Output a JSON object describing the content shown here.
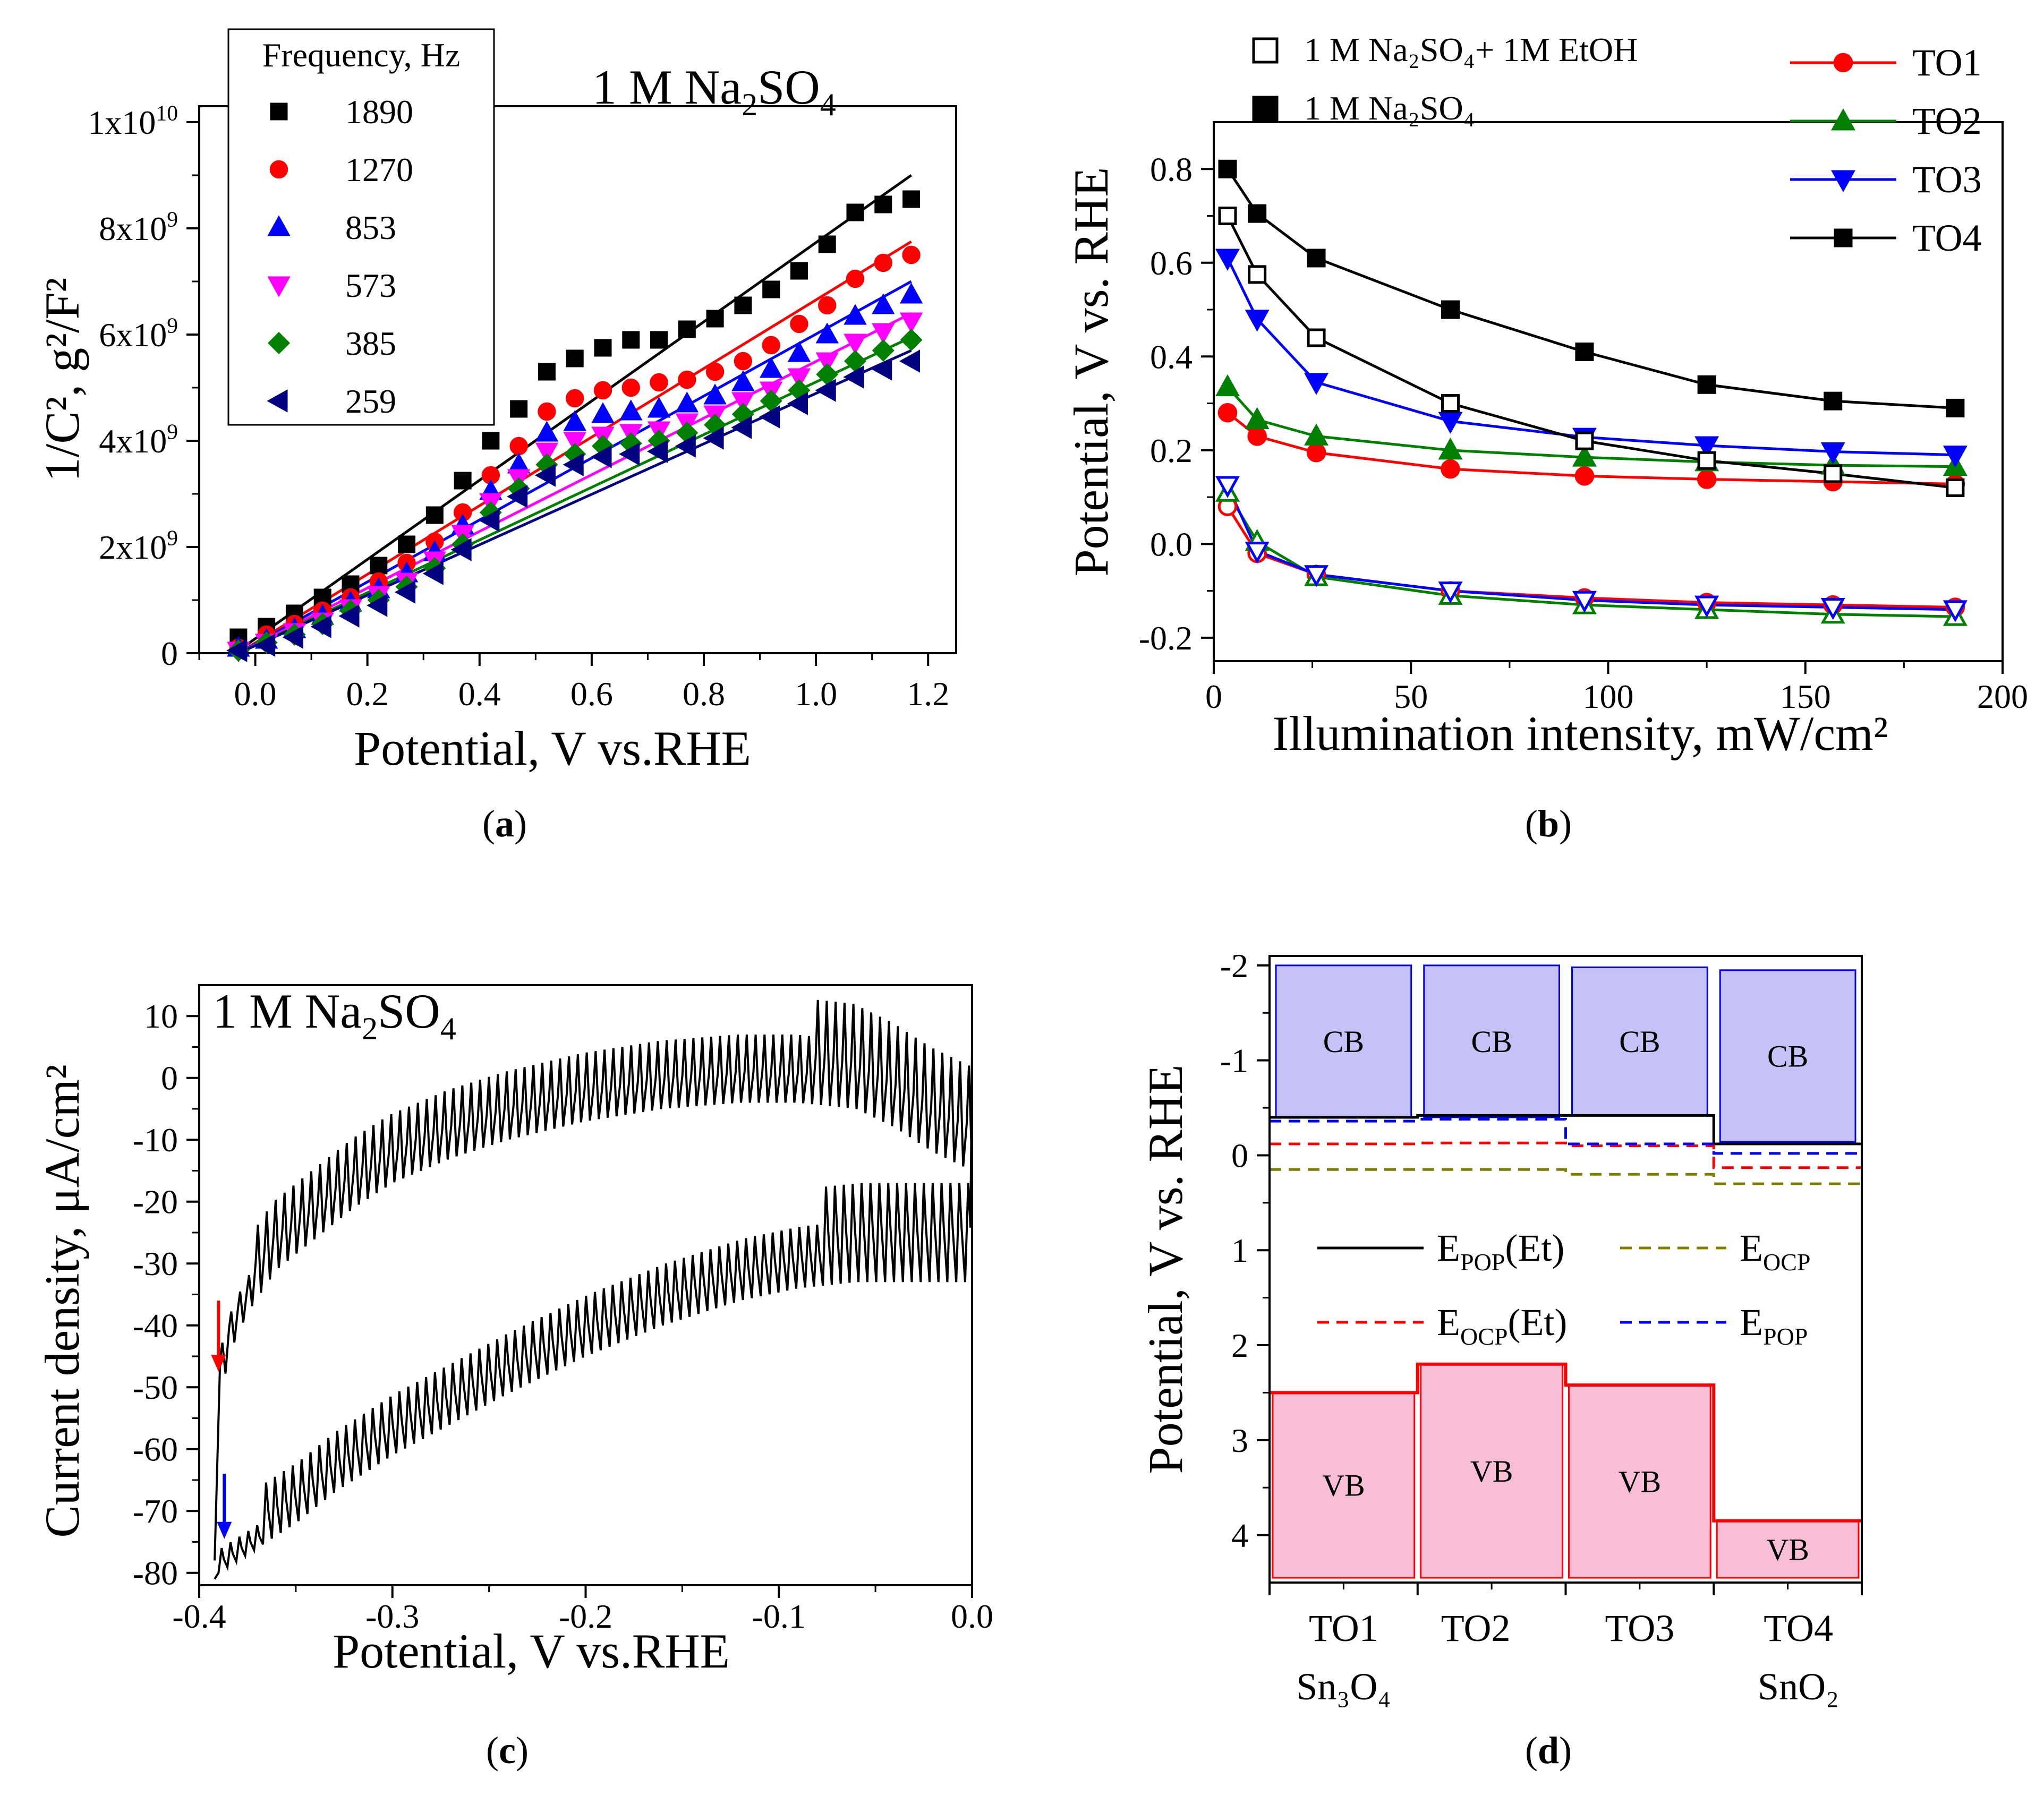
{
  "chart_data": [
    {
      "id": "a",
      "panel_label": "a",
      "type": "scatter",
      "annotation": "1 M Na",
      "annotation_sub": [
        "2",
        "4"
      ],
      "annotation_mid": "SO",
      "xlabel": "Potential, V vs.RHE",
      "ylabel": "1/C², g²/F²",
      "xlim": [
        -0.1,
        1.25
      ],
      "ylim": [
        0,
        10000000000.0
      ],
      "xticks": [
        0.0,
        0.2,
        0.4,
        0.6,
        0.8,
        1.0,
        1.2
      ],
      "xtick_labels": [
        "0.0",
        "0.2",
        "0.4",
        "0.6",
        "0.8",
        "1.0",
        "1.2"
      ],
      "yticks": [
        0,
        2000000000.0,
        4000000000.0,
        6000000000.0,
        8000000000.0,
        10000000000.0
      ],
      "ytick_labels": [
        "0",
        "2x10⁹",
        "4x10⁹",
        "6x10⁹",
        "8x10⁹",
        "1x10¹⁰"
      ],
      "legend_title": "Frequency, Hz",
      "legend_position": "top-left",
      "x": [
        -0.03,
        0.02,
        0.07,
        0.12,
        0.17,
        0.22,
        0.27,
        0.32,
        0.37,
        0.42,
        0.47,
        0.52,
        0.57,
        0.62,
        0.67,
        0.72,
        0.77,
        0.82,
        0.87,
        0.92,
        0.97,
        1.02,
        1.07,
        1.12,
        1.17
      ],
      "series": [
        {
          "name": "1890",
          "color": "#000000",
          "marker": "square",
          "values": [
            300000000.0,
            500000000.0,
            750000000.0,
            1050000000.0,
            1300000000.0,
            1650000000.0,
            2050000000.0,
            2600000000.0,
            3250000000.0,
            4000000000.0,
            4600000000.0,
            5300000000.0,
            5550000000.0,
            5750000000.0,
            5900000000.0,
            5900000000.0,
            6100000000.0,
            6300000000.0,
            6550000000.0,
            6850000000.0,
            7200000000.0,
            7700000000.0,
            8300000000.0,
            8450000000.0,
            8550000000.0
          ],
          "fit": [
            [
              -0.03,
              50000000.0
            ],
            [
              1.17,
              9000000000.0
            ]
          ]
        },
        {
          "name": "1270",
          "color": "#ff0000",
          "marker": "circle",
          "values": [
            100000000.0,
            350000000.0,
            550000000.0,
            800000000.0,
            1050000000.0,
            1350000000.0,
            1700000000.0,
            2100000000.0,
            2650000000.0,
            3350000000.0,
            3900000000.0,
            4550000000.0,
            4800000000.0,
            4950000000.0,
            5000000000.0,
            5100000000.0,
            5150000000.0,
            5300000000.0,
            5500000000.0,
            5800000000.0,
            6200000000.0,
            6550000000.0,
            7050000000.0,
            7350000000.0,
            7500000000.0
          ],
          "fit": [
            [
              -0.03,
              0.0
            ],
            [
              1.17,
              7750000000.0
            ]
          ]
        },
        {
          "name": "853",
          "color": "#0000ff",
          "marker": "triangle-up",
          "values": [
            100000000.0,
            250000000.0,
            450000000.0,
            700000000.0,
            950000000.0,
            1200000000.0,
            1500000000.0,
            1900000000.0,
            2400000000.0,
            3050000000.0,
            3550000000.0,
            4150000000.0,
            4350000000.0,
            4500000000.0,
            4550000000.0,
            4600000000.0,
            4700000000.0,
            4850000000.0,
            5100000000.0,
            5350000000.0,
            5650000000.0,
            6000000000.0,
            6350000000.0,
            6550000000.0,
            6750000000.0
          ],
          "fit": [
            [
              -0.03,
              0.0
            ],
            [
              1.17,
              7000000000.0
            ]
          ]
        },
        {
          "name": "573",
          "color": "#ff00ff",
          "marker": "triangle-down",
          "values": [
            50000000.0,
            200000000.0,
            400000000.0,
            600000000.0,
            850000000.0,
            1100000000.0,
            1350000000.0,
            1750000000.0,
            2250000000.0,
            2850000000.0,
            3300000000.0,
            3800000000.0,
            4000000000.0,
            4100000000.0,
            4150000000.0,
            4200000000.0,
            4350000000.0,
            4500000000.0,
            4750000000.0,
            4950000000.0,
            5200000000.0,
            5500000000.0,
            5850000000.0,
            6050000000.0,
            6250000000.0
          ],
          "fit": [
            [
              -0.03,
              0.0
            ],
            [
              1.17,
              6400000000.0
            ]
          ]
        },
        {
          "name": "385",
          "color": "#008000",
          "marker": "diamond",
          "values": [
            50000000.0,
            200000000.0,
            350000000.0,
            550000000.0,
            800000000.0,
            1000000000.0,
            1250000000.0,
            1600000000.0,
            2050000000.0,
            2650000000.0,
            3100000000.0,
            3550000000.0,
            3750000000.0,
            3900000000.0,
            3950000000.0,
            4000000000.0,
            4150000000.0,
            4300000000.0,
            4500000000.0,
            4750000000.0,
            4950000000.0,
            5250000000.0,
            5500000000.0,
            5700000000.0,
            5900000000.0
          ],
          "fit": [
            [
              -0.03,
              0.0
            ],
            [
              1.17,
              5950000000.0
            ]
          ]
        },
        {
          "name": "259",
          "color": "#000080",
          "marker": "triangle-left",
          "values": [
            50000000.0,
            150000000.0,
            300000000.0,
            500000000.0,
            700000000.0,
            900000000.0,
            1150000000.0,
            1500000000.0,
            1950000000.0,
            2500000000.0,
            2950000000.0,
            3350000000.0,
            3550000000.0,
            3700000000.0,
            3750000000.0,
            3800000000.0,
            3900000000.0,
            4050000000.0,
            4250000000.0,
            4450000000.0,
            4700000000.0,
            4950000000.0,
            5200000000.0,
            5350000000.0,
            5500000000.0
          ],
          "fit": [
            [
              -0.03,
              0.0
            ],
            [
              1.17,
              5700000000.0
            ]
          ]
        }
      ]
    },
    {
      "id": "b",
      "panel_label": "b",
      "type": "line",
      "xlabel": "Illumination intensity, mW/cm²",
      "ylabel": "Potential, V vs. RHE",
      "xlim": [
        0,
        200
      ],
      "ylim": [
        -0.25,
        0.9
      ],
      "xticks": [
        0,
        50,
        100,
        150,
        200
      ],
      "xtick_labels": [
        "0",
        "50",
        "100",
        "150",
        "200"
      ],
      "yticks": [
        -0.2,
        0.0,
        0.2,
        0.4,
        0.6,
        0.8
      ],
      "ytick_labels": [
        "-0.2",
        "0.0",
        "0.2",
        "0.4",
        "0.6",
        "0.8"
      ],
      "legend_conditions": [
        {
          "label": "1 M Na₂SO₄+ 1M EtOH",
          "marker": "open-square"
        },
        {
          "label": "1 M Na₂SO₄",
          "marker": "filled-square"
        }
      ],
      "legend_position": "top-right",
      "x": [
        3.5,
        11,
        26,
        60,
        94,
        125,
        157,
        188
      ],
      "series": [
        {
          "name": "TO1",
          "color": "#ff0000",
          "marker": "circle",
          "filled": [
            0.28,
            0.23,
            0.195,
            0.16,
            0.145,
            0.138,
            0.133,
            0.128
          ],
          "open": [
            0.08,
            -0.02,
            -0.065,
            -0.1,
            -0.115,
            -0.125,
            -0.13,
            -0.135
          ]
        },
        {
          "name": "TO2",
          "color": "#008000",
          "marker": "triangle-up",
          "filled": [
            0.335,
            0.265,
            0.23,
            0.2,
            0.185,
            0.175,
            0.168,
            0.165
          ],
          "open": [
            0.11,
            0.005,
            -0.07,
            -0.11,
            -0.13,
            -0.14,
            -0.15,
            -0.155
          ]
        },
        {
          "name": "TO3",
          "color": "#0000ff",
          "marker": "triangle-down",
          "filled": [
            0.61,
            0.48,
            0.345,
            0.262,
            0.228,
            0.21,
            0.197,
            0.19
          ],
          "open": [
            0.125,
            -0.015,
            -0.065,
            -0.1,
            -0.12,
            -0.13,
            -0.135,
            -0.14
          ]
        },
        {
          "name": "TO4",
          "color": "#000000",
          "marker": "square",
          "filled": [
            0.8,
            0.705,
            0.61,
            0.5,
            0.41,
            0.34,
            0.305,
            0.29
          ],
          "open": [
            0.7,
            0.575,
            0.44,
            0.3,
            0.22,
            0.178,
            0.15,
            0.12
          ]
        }
      ]
    },
    {
      "id": "c",
      "panel_label": "c",
      "type": "line",
      "annotation_parts": [
        "1 M Na",
        "2",
        "SO",
        "4"
      ],
      "xlabel": "Potential, V vs.RHE",
      "ylabel": "Current density, μA/cm²",
      "xlim": [
        -0.4,
        0.0
      ],
      "ylim": [
        -82,
        15
      ],
      "xticks": [
        -0.4,
        -0.3,
        -0.2,
        -0.1,
        0.0
      ],
      "xtick_labels": [
        "-0.4",
        "-0.3",
        "-0.2",
        "-0.1",
        "0.0"
      ],
      "yticks": [
        -80,
        -70,
        -60,
        -50,
        -40,
        -30,
        -20,
        -10,
        0,
        10
      ],
      "ytick_labels": [
        "-80",
        "-70",
        "-60",
        "-50",
        "-40",
        "-30",
        "-20",
        "-10",
        "0",
        "10"
      ],
      "upper_envelope_x": [
        -0.39,
        -0.385,
        -0.375,
        -0.36,
        -0.34,
        -0.32,
        -0.3,
        -0.27,
        -0.24,
        -0.2,
        -0.16,
        -0.12,
        -0.09,
        -0.06,
        -0.04,
        -0.02,
        0.0
      ],
      "upper_envelope_y": [
        -55,
        -45,
        -38,
        -31,
        -26,
        -21,
        -17,
        -13,
        -10,
        -7,
        -5,
        -4,
        -4,
        -5,
        -8,
        -12,
        -15
      ],
      "lower_envelope_x": [
        -0.39,
        -0.385,
        -0.37,
        -0.35,
        -0.33,
        -0.3,
        -0.27,
        -0.24,
        -0.2,
        -0.16,
        -0.12,
        -0.09,
        -0.06,
        -0.04,
        -0.02,
        0.0
      ],
      "lower_envelope_y": [
        -80,
        -79,
        -76,
        -72,
        -67,
        -61,
        -56,
        -51,
        -45,
        -40,
        -36,
        -34,
        -33,
        -33,
        -33,
        -33
      ],
      "spike_amplitude": 10,
      "arrows": [
        {
          "color": "#ff0000",
          "x": -0.39,
          "y_from": -36,
          "y_to": -47
        },
        {
          "color": "#0000ff",
          "x": -0.387,
          "y_from": -64,
          "y_to": -74
        }
      ]
    },
    {
      "id": "d",
      "panel_label": "d",
      "type": "bar",
      "ylabel": "Potential, V vs. RHE",
      "ylim_inverted": [
        -2.1,
        4.5
      ],
      "yticks": [
        -2,
        -1,
        0,
        1,
        2,
        3,
        4
      ],
      "ytick_labels": [
        "-2",
        "-1",
        "0",
        "1",
        "2",
        "3",
        "4"
      ],
      "categories": [
        "TO1",
        "TO2",
        "TO3",
        "TO4"
      ],
      "sublabels": [
        "Sn₃O₄",
        "",
        "",
        "SnO₂"
      ],
      "cb_label": "CB",
      "vb_label": "VB",
      "cb_color": "#c6c1f6",
      "vb_color": "#f8bed6",
      "cb_top": [
        -2.0,
        -2.0,
        -1.98,
        -1.95
      ],
      "cb_bottom": [
        -0.4,
        -0.4,
        -0.42,
        -0.14
      ],
      "vb_top": [
        2.5,
        2.2,
        2.42,
        3.85
      ],
      "vb_bottom": [
        4.45,
        4.45,
        4.45,
        4.45
      ],
      "lines": [
        {
          "name": "E_POP(Et)",
          "label_main": "E",
          "label_sub": "POP",
          "label_tail": "(Et)",
          "color": "#000000",
          "dash": false,
          "values": [
            -0.4,
            -0.42,
            -0.42,
            -0.12
          ]
        },
        {
          "name": "E_OCP",
          "label_main": "E",
          "label_sub": "OCP",
          "label_tail": "",
          "color": "#808000",
          "dash": true,
          "values": [
            0.15,
            0.15,
            0.2,
            0.3
          ]
        },
        {
          "name": "E_OCP(Et)",
          "label_main": "E",
          "label_sub": "OCP",
          "label_tail": "(Et)",
          "color": "#ff0000",
          "dash": true,
          "values": [
            -0.12,
            -0.13,
            -0.1,
            0.13
          ]
        },
        {
          "name": "E_POP",
          "label_main": "E",
          "label_sub": "POP",
          "label_tail": "",
          "color": "#0000ff",
          "dash": true,
          "values": [
            -0.36,
            -0.38,
            -0.12,
            -0.02
          ]
        }
      ]
    }
  ]
}
